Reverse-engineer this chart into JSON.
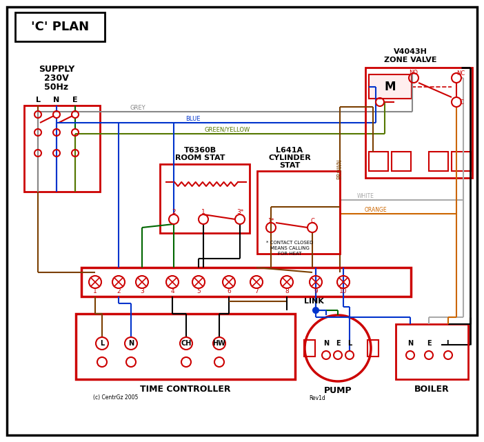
{
  "bg": "#ffffff",
  "black": "#000000",
  "red": "#cc0000",
  "blue": "#0033cc",
  "green": "#006600",
  "grey": "#888888",
  "brown": "#7B3F00",
  "orange": "#cc6600",
  "white_wire": "#aaaaaa",
  "green_yellow": "#557700",
  "supply_text1": "SUPPLY",
  "supply_text2": "230V",
  "supply_text3": "50Hz",
  "zone_valve_t1": "V4043H",
  "zone_valve_t2": "ZONE VALVE",
  "room_stat_t1": "T6360B",
  "room_stat_t2": "ROOM STAT",
  "cyl_stat_t1": "L641A",
  "cyl_stat_t2": "CYLINDER",
  "cyl_stat_t3": "STAT",
  "cyl_note1": "* CONTACT CLOSED",
  "cyl_note2": "MEANS CALLING",
  "cyl_note3": "FOR HEAT",
  "title": "'C' PLAN",
  "time_ctrl": "TIME CONTROLLER",
  "pump": "PUMP",
  "boiler": "BOILER",
  "link": "LINK",
  "copyright": "(c) CentrGz 2005",
  "rev": "Rev1d",
  "terminal_nums": [
    "1",
    "2",
    "3",
    "4",
    "5",
    "6",
    "7",
    "8",
    "9",
    "10"
  ]
}
